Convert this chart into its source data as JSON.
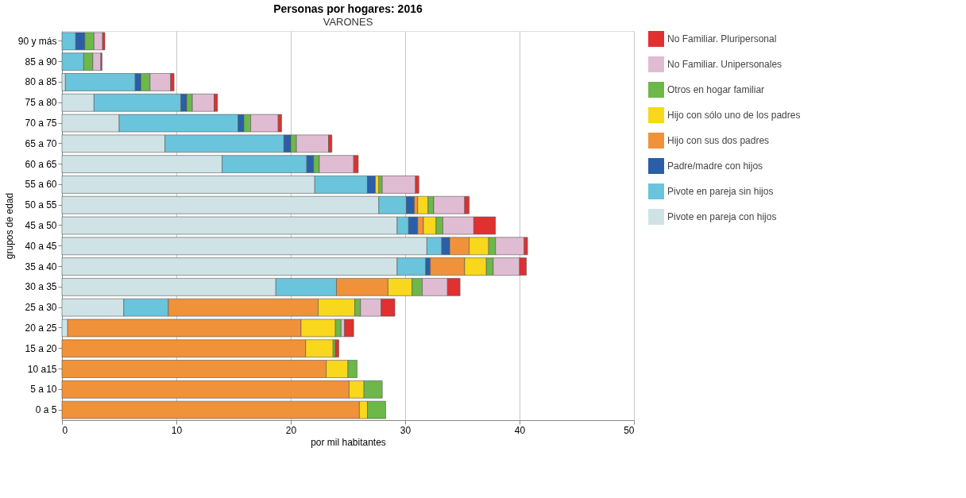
{
  "chart_data": {
    "type": "bar",
    "orientation": "horizontal",
    "stacked": true,
    "title": "Personas por hogares: 2016",
    "subtitle": "VARONES",
    "xlabel": "por mil habitantes",
    "ylabel": "grupos de edad",
    "categories": [
      "90 y más",
      "85 a 90",
      "80 a 85",
      "75 a 80",
      "70 a 75",
      "65 a 70",
      "60 a 65",
      "55 a 60",
      "50 a 55",
      "45 a 50",
      "40 a 45",
      "35 a 40",
      "30 a 35",
      "25 a 30",
      "20 a 25",
      "15 a 20",
      "10 a15",
      "5 a 10",
      "0 a 5"
    ],
    "series": [
      {
        "name": "Pivote en pareja con hijos",
        "color": "#cfe3e6",
        "values": [
          null,
          null,
          0.3,
          2.8,
          5.0,
          9.0,
          14.0,
          22.1,
          27.7,
          29.3,
          31.9,
          29.3,
          18.7,
          5.4,
          0.5,
          null,
          null,
          null,
          null
        ]
      },
      {
        "name": "Pivote en pareja sin hijos",
        "color": "#6ac4dc",
        "values": [
          1.2,
          1.9,
          6.1,
          7.6,
          10.4,
          10.4,
          7.4,
          4.6,
          2.4,
          1.0,
          1.3,
          2.5,
          5.3,
          3.9,
          null,
          null,
          null,
          null,
          null
        ]
      },
      {
        "name": "Padre/madre con hijos",
        "color": "#2a5ea8",
        "values": [
          0.8,
          null,
          0.5,
          0.5,
          0.5,
          0.6,
          0.6,
          0.7,
          0.7,
          0.8,
          0.7,
          0.4,
          null,
          null,
          null,
          null,
          null,
          null,
          null
        ]
      },
      {
        "name": "Hijo con sus dos padres",
        "color": "#f0923a",
        "values": [
          null,
          null,
          null,
          null,
          null,
          null,
          null,
          null,
          0.3,
          0.5,
          1.7,
          3.0,
          4.5,
          13.1,
          20.4,
          21.3,
          23.1,
          25.1,
          26.0
        ]
      },
      {
        "name": "Hijo con sólo uno de los padres",
        "color": "#f9d71c",
        "values": [
          null,
          null,
          null,
          null,
          null,
          null,
          null,
          0.3,
          0.9,
          1.1,
          1.7,
          1.9,
          2.1,
          3.2,
          3.0,
          2.4,
          1.9,
          1.3,
          0.7
        ]
      },
      {
        "name": "Otros en hogar familiar",
        "color": "#6cb84a",
        "values": [
          0.8,
          0.8,
          0.8,
          0.5,
          0.6,
          0.5,
          0.5,
          0.3,
          0.5,
          0.6,
          0.6,
          0.6,
          0.9,
          0.5,
          0.5,
          0.2,
          0.8,
          1.6,
          1.6
        ]
      },
      {
        "name": "No Familiar. Unipersonales",
        "color": "#e0bcd3",
        "values": [
          0.75,
          0.7,
          1.8,
          1.9,
          2.4,
          2.8,
          3.0,
          2.9,
          2.7,
          2.7,
          2.5,
          2.3,
          2.2,
          1.8,
          0.3,
          null,
          null,
          null,
          null
        ]
      },
      {
        "name": "No Familiar. Pluripersonal",
        "color": "#e03030",
        "values": [
          0.2,
          0.1,
          0.3,
          0.3,
          0.3,
          0.3,
          0.4,
          0.3,
          0.4,
          1.9,
          0.3,
          0.6,
          1.1,
          1.2,
          0.8,
          0.3,
          null,
          null,
          null
        ]
      }
    ],
    "xlim": [
      0,
      50
    ],
    "xticks": [
      0,
      10,
      20,
      30,
      40,
      50
    ],
    "grid": "x",
    "legend": "right"
  }
}
